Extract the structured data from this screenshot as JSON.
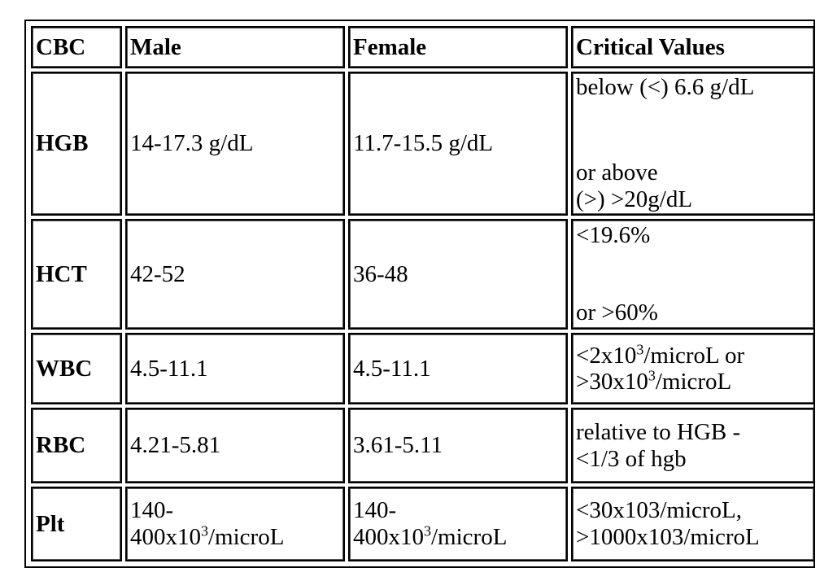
{
  "table": {
    "headers": [
      "CBC",
      "Male",
      "Female",
      "Critical Values"
    ],
    "rows": {
      "hgb": {
        "name": "HGB",
        "male": "14-17.3 g/dL",
        "female": "11.7-15.5 g/dL",
        "critical_line1": "below (<) 6.6 g/dL",
        "critical_line2": "or above",
        "critical_line3": "(>)  >20g/dL"
      },
      "hct": {
        "name": "HCT",
        "male": "42-52",
        "female": "36-48",
        "critical_line1": "<19.6%",
        "critical_line2": "or >60%"
      },
      "wbc": {
        "name": "WBC",
        "male": "4.5-11.1",
        "female": "4.5-11.1",
        "critical_a_pre": "<2x10",
        "critical_a_sup": "3",
        "critical_a_post": "/microL or",
        "critical_b_pre": ">30x10",
        "critical_b_sup": "3",
        "critical_b_post": "/microL"
      },
      "rbc": {
        "name": "RBC",
        "male": "4.21-5.81",
        "female": "3.61-5.11",
        "critical_line1": "relative to HGB -",
        "critical_line2": "<1/3 of hgb"
      },
      "plt": {
        "name": "Plt",
        "male_line1": "140-",
        "male_pre": "400x10",
        "male_sup": "3",
        "male_post": "/microL",
        "female_line1": "140-",
        "female_pre": "400x10",
        "female_sup": "3",
        "female_post": "/microL",
        "critical_line1": "<30x103/microL,",
        "critical_line2": ">1000x103/microL"
      }
    }
  }
}
